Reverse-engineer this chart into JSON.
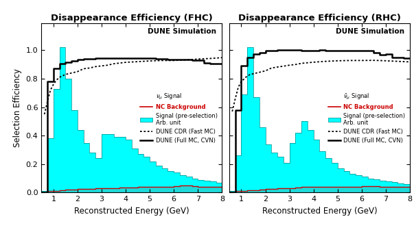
{
  "fhc_title": "Disappearance Efficiency (FHC)",
  "rhc_title": "Disappearance Efficiency (RHC)",
  "xlabel": "Reconstructed Energy (GeV)",
  "ylabel": "Selection Efficiency",
  "annotation": "DUNE Simulation",
  "xlim": [
    0.5,
    8.0
  ],
  "ylim": [
    0.0,
    1.19
  ],
  "yticks": [
    0.0,
    0.2,
    0.4,
    0.6,
    0.8,
    1.0
  ],
  "xticks": [
    1,
    2,
    3,
    4,
    5,
    6,
    7,
    8
  ],
  "signal_color": "#00FFFF",
  "nc_bg_color": "#CC0000",
  "fhc_legend_label": "$\\nu_{\\mu}$ Signal",
  "rhc_legend_label": "$\\bar{\\nu}_{\\mu}$ Signal",
  "legend_nc": "NC Background",
  "legend_presel": "Signal (pre-selection)\nArb. unit",
  "legend_cdr": "DUNE CDR (Fast MC)",
  "legend_cvn": "DUNE (Full MC, CVN)",
  "fhc_hist_edges": [
    0.5,
    0.75,
    1.0,
    1.25,
    1.5,
    1.75,
    2.0,
    2.25,
    2.5,
    2.75,
    3.0,
    3.25,
    3.5,
    3.75,
    4.0,
    4.25,
    4.5,
    4.75,
    5.0,
    5.25,
    5.5,
    5.75,
    6.0,
    6.25,
    6.5,
    6.75,
    7.0,
    7.25,
    7.5,
    7.75,
    8.0
  ],
  "fhc_signal_hist": [
    0.01,
    0.38,
    0.73,
    1.02,
    0.8,
    0.58,
    0.44,
    0.35,
    0.28,
    0.24,
    0.41,
    0.41,
    0.39,
    0.39,
    0.37,
    0.31,
    0.27,
    0.25,
    0.22,
    0.19,
    0.17,
    0.15,
    0.14,
    0.12,
    0.11,
    0.1,
    0.09,
    0.085,
    0.078,
    0.068
  ],
  "fhc_nc_hist": [
    0.004,
    0.009,
    0.012,
    0.018,
    0.019,
    0.022,
    0.026,
    0.027,
    0.028,
    0.029,
    0.032,
    0.033,
    0.033,
    0.034,
    0.037,
    0.037,
    0.038,
    0.038,
    0.039,
    0.039,
    0.039,
    0.04,
    0.047,
    0.048,
    0.048,
    0.043,
    0.039,
    0.039,
    0.039,
    0.039
  ],
  "fhc_cdr_x": [
    0.625,
    0.75,
    0.875,
    1.0,
    1.125,
    1.25,
    1.375,
    1.5,
    1.625,
    1.75,
    1.875,
    2.0,
    2.25,
    2.5,
    2.75,
    3.0,
    3.25,
    3.5,
    3.75,
    4.0,
    4.5,
    5.0,
    5.5,
    6.0,
    6.5,
    7.0,
    7.5,
    8.0
  ],
  "fhc_cdr_y": [
    0.55,
    0.64,
    0.72,
    0.76,
    0.79,
    0.81,
    0.82,
    0.83,
    0.835,
    0.84,
    0.845,
    0.85,
    0.87,
    0.875,
    0.885,
    0.89,
    0.895,
    0.905,
    0.91,
    0.915,
    0.92,
    0.925,
    0.928,
    0.928,
    0.932,
    0.938,
    0.942,
    0.948
  ],
  "fhc_cvn_edges": [
    0.5,
    0.75,
    1.0,
    1.25,
    1.5,
    1.75,
    2.0,
    2.25,
    2.5,
    2.75,
    3.0,
    3.25,
    3.5,
    3.75,
    4.0,
    4.25,
    4.5,
    4.75,
    5.0,
    5.25,
    5.5,
    5.75,
    6.0,
    6.25,
    6.5,
    6.75,
    7.0,
    7.25,
    7.5,
    7.75,
    8.0
  ],
  "fhc_cvn_y": [
    0.0,
    0.78,
    0.87,
    0.905,
    0.915,
    0.925,
    0.935,
    0.938,
    0.94,
    0.942,
    0.942,
    0.944,
    0.944,
    0.944,
    0.944,
    0.943,
    0.943,
    0.943,
    0.942,
    0.94,
    0.938,
    0.936,
    0.936,
    0.934,
    0.934,
    0.932,
    0.928,
    0.912,
    0.908,
    0.908
  ],
  "rhc_hist_edges": [
    0.5,
    0.75,
    1.0,
    1.25,
    1.5,
    1.75,
    2.0,
    2.25,
    2.5,
    2.75,
    3.0,
    3.25,
    3.5,
    3.75,
    4.0,
    4.25,
    4.5,
    4.75,
    5.0,
    5.25,
    5.5,
    5.75,
    6.0,
    6.25,
    6.5,
    6.75,
    7.0,
    7.25,
    7.5,
    7.75,
    8.0
  ],
  "rhc_signal_hist": [
    0.01,
    0.26,
    0.69,
    1.02,
    0.67,
    0.46,
    0.34,
    0.28,
    0.25,
    0.21,
    0.35,
    0.42,
    0.5,
    0.44,
    0.37,
    0.29,
    0.24,
    0.21,
    0.17,
    0.15,
    0.13,
    0.12,
    0.11,
    0.1,
    0.095,
    0.085,
    0.077,
    0.075,
    0.065,
    0.058
  ],
  "rhc_nc_hist": [
    0.003,
    0.009,
    0.013,
    0.017,
    0.018,
    0.022,
    0.027,
    0.028,
    0.029,
    0.029,
    0.033,
    0.034,
    0.038,
    0.038,
    0.039,
    0.039,
    0.039,
    0.039,
    0.039,
    0.039,
    0.04,
    0.04,
    0.043,
    0.043,
    0.044,
    0.04,
    0.039,
    0.039,
    0.039,
    0.039
  ],
  "rhc_cdr_x": [
    0.625,
    0.75,
    0.875,
    1.0,
    1.125,
    1.25,
    1.375,
    1.5,
    1.625,
    1.75,
    1.875,
    2.0,
    2.25,
    2.5,
    2.75,
    3.0,
    3.25,
    3.5,
    3.75,
    4.0,
    4.5,
    5.0,
    5.5,
    6.0,
    6.5,
    7.0,
    7.5,
    8.0
  ],
  "rhc_cdr_y": [
    0.57,
    0.66,
    0.74,
    0.78,
    0.8,
    0.82,
    0.83,
    0.835,
    0.84,
    0.845,
    0.85,
    0.855,
    0.875,
    0.882,
    0.888,
    0.895,
    0.9,
    0.908,
    0.912,
    0.916,
    0.922,
    0.926,
    0.928,
    0.928,
    0.929,
    0.926,
    0.922,
    0.918
  ],
  "rhc_cvn_edges": [
    0.5,
    0.75,
    1.0,
    1.25,
    1.5,
    1.75,
    2.0,
    2.25,
    2.5,
    2.75,
    3.0,
    3.25,
    3.5,
    3.75,
    4.0,
    4.25,
    4.5,
    4.75,
    5.0,
    5.25,
    5.5,
    5.75,
    6.0,
    6.25,
    6.5,
    6.75,
    7.0,
    7.25,
    7.5,
    7.75,
    8.0
  ],
  "rhc_cvn_y": [
    0.0,
    0.58,
    0.89,
    0.95,
    0.975,
    0.985,
    0.995,
    0.999,
    1.002,
    1.002,
    1.0,
    1.001,
    0.999,
    0.999,
    0.999,
    1.001,
    0.999,
    0.999,
    0.999,
    0.999,
    0.999,
    0.999,
    0.999,
    0.997,
    0.985,
    0.968,
    0.972,
    0.95,
    0.95,
    0.945
  ]
}
